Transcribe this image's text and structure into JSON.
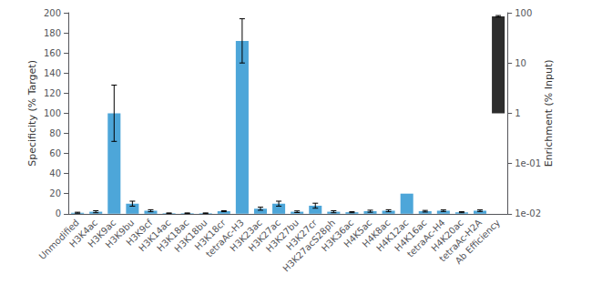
{
  "chart_data": {
    "type": "bar",
    "categories": [
      "Unmodified",
      "H3K4ac",
      "H3K9ac",
      "H3K9bu",
      "H3K9cf",
      "H3K14ac",
      "H3K18ac",
      "H3K18bu",
      "H3K18cr",
      "tetraAc-H3",
      "H3K23ac",
      "H3K27ac",
      "H3K27bu",
      "H3K27cr",
      "H3K27acS28ph",
      "H3K36ac",
      "H4K5ac",
      "H4K8ac",
      "H4K12ac",
      "H4K16ac",
      "tetraAc-H4",
      "H4K20ac",
      "tetraAc-H2A",
      "Ab Efficiency"
    ],
    "series": [
      {
        "values": [
          1.0,
          2.0,
          100.0,
          10.0,
          3.0,
          0.5,
          0.5,
          0.5,
          2.5,
          172.0,
          5.0,
          10.0,
          2.0,
          8.0,
          2.0,
          1.5,
          2.5,
          3.0,
          20.0,
          2.5,
          3.0,
          1.5,
          3.0,
          null
        ],
        "errors": [
          0.5,
          1.0,
          28.0,
          2.5,
          1.0,
          0.3,
          0.3,
          0.3,
          0.5,
          22.0,
          1.5,
          2.5,
          0.8,
          2.5,
          1.0,
          0.5,
          1.0,
          1.0,
          0.0,
          0.8,
          0.8,
          0.5,
          0.8,
          null
        ],
        "color": "#4da6d9"
      },
      {
        "values": [
          null,
          null,
          null,
          null,
          null,
          null,
          null,
          null,
          null,
          null,
          null,
          null,
          null,
          null,
          null,
          null,
          null,
          null,
          null,
          null,
          null,
          null,
          null,
          85.0
        ],
        "errors": [
          null,
          null,
          null,
          null,
          null,
          null,
          null,
          null,
          null,
          null,
          null,
          null,
          null,
          null,
          null,
          null,
          null,
          null,
          null,
          null,
          null,
          null,
          null,
          3.0
        ],
        "color": "#2d2d2d",
        "axis": "y2"
      }
    ],
    "ylabel": "Specificity (% Target)",
    "y2label": "Enrichment (% Input)",
    "ylim": [
      0,
      200
    ],
    "yticks": [
      0,
      20,
      40,
      60,
      80,
      100,
      120,
      140,
      160,
      180,
      200
    ],
    "y2lim": [
      0.01,
      100
    ],
    "y2ticks": [
      {
        "value": 0.01,
        "label": "1e-02"
      },
      {
        "value": 0.1,
        "label": "1e-01"
      },
      1,
      10,
      100
    ],
    "log": "y2",
    "grid": false
  }
}
